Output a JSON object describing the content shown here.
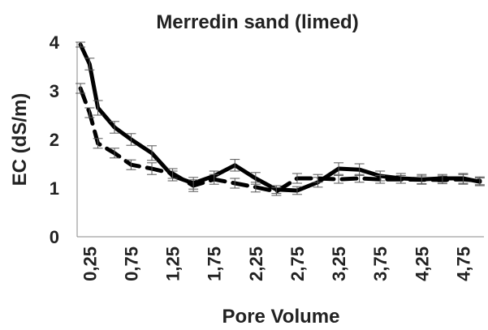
{
  "chart_data": {
    "type": "line",
    "title": "Merredin sand (limed)",
    "xlabel": "Pore Volume",
    "ylabel": "EC (dS/m)",
    "ylim": [
      0,
      4
    ],
    "yticks": [
      "0",
      "1",
      "2",
      "3",
      "4"
    ],
    "xlim": [
      0.1,
      5.0
    ],
    "xticks": [
      "0,25",
      "0,75",
      "1,25",
      "1,75",
      "2,25",
      "2,75",
      "3,25",
      "3,75",
      "4,25",
      "4,75"
    ],
    "xtick_values": [
      0.25,
      0.75,
      1.25,
      1.75,
      2.25,
      2.75,
      3.25,
      3.75,
      4.25,
      4.75
    ],
    "grid": false,
    "legend": "none",
    "series": [
      {
        "style": "solid",
        "color": "#000000",
        "x": [
          0.14,
          0.25,
          0.35,
          0.55,
          0.75,
          1.0,
          1.25,
          1.5,
          1.75,
          2.0,
          2.25,
          2.5,
          2.75,
          3.0,
          3.25,
          3.5,
          3.75,
          4.0,
          4.25,
          4.5,
          4.75,
          4.95
        ],
        "y": [
          3.95,
          3.55,
          2.65,
          2.25,
          2.0,
          1.72,
          1.25,
          1.1,
          1.25,
          1.47,
          1.2,
          0.97,
          0.95,
          1.12,
          1.4,
          1.38,
          1.25,
          1.2,
          1.18,
          1.2,
          1.2,
          1.13
        ],
        "err": [
          0.05,
          0.12,
          0.15,
          0.12,
          0.12,
          0.15,
          0.1,
          0.12,
          0.1,
          0.12,
          0.12,
          0.08,
          0.08,
          0.1,
          0.12,
          0.12,
          0.1,
          0.1,
          0.1,
          0.08,
          0.1,
          0.08
        ]
      },
      {
        "style": "dashed",
        "color": "#000000",
        "x": [
          0.14,
          0.25,
          0.35,
          0.55,
          0.75,
          1.0,
          1.25,
          1.5,
          1.75,
          2.0,
          2.25,
          2.5,
          2.75,
          3.0,
          3.25,
          3.5,
          3.75,
          4.0,
          4.25,
          4.5,
          4.75,
          4.95
        ],
        "y": [
          3.05,
          2.55,
          1.92,
          1.72,
          1.48,
          1.4,
          1.3,
          1.05,
          1.18,
          1.1,
          1.02,
          0.93,
          1.2,
          1.2,
          1.18,
          1.2,
          1.18,
          1.18,
          1.17,
          1.17,
          1.18,
          1.15
        ],
        "err": [
          0.1,
          0.1,
          0.1,
          0.1,
          0.1,
          0.12,
          0.1,
          0.12,
          0.1,
          0.1,
          0.1,
          0.08,
          0.1,
          0.08,
          0.08,
          0.08,
          0.08,
          0.08,
          0.08,
          0.08,
          0.1,
          0.08
        ]
      }
    ]
  }
}
